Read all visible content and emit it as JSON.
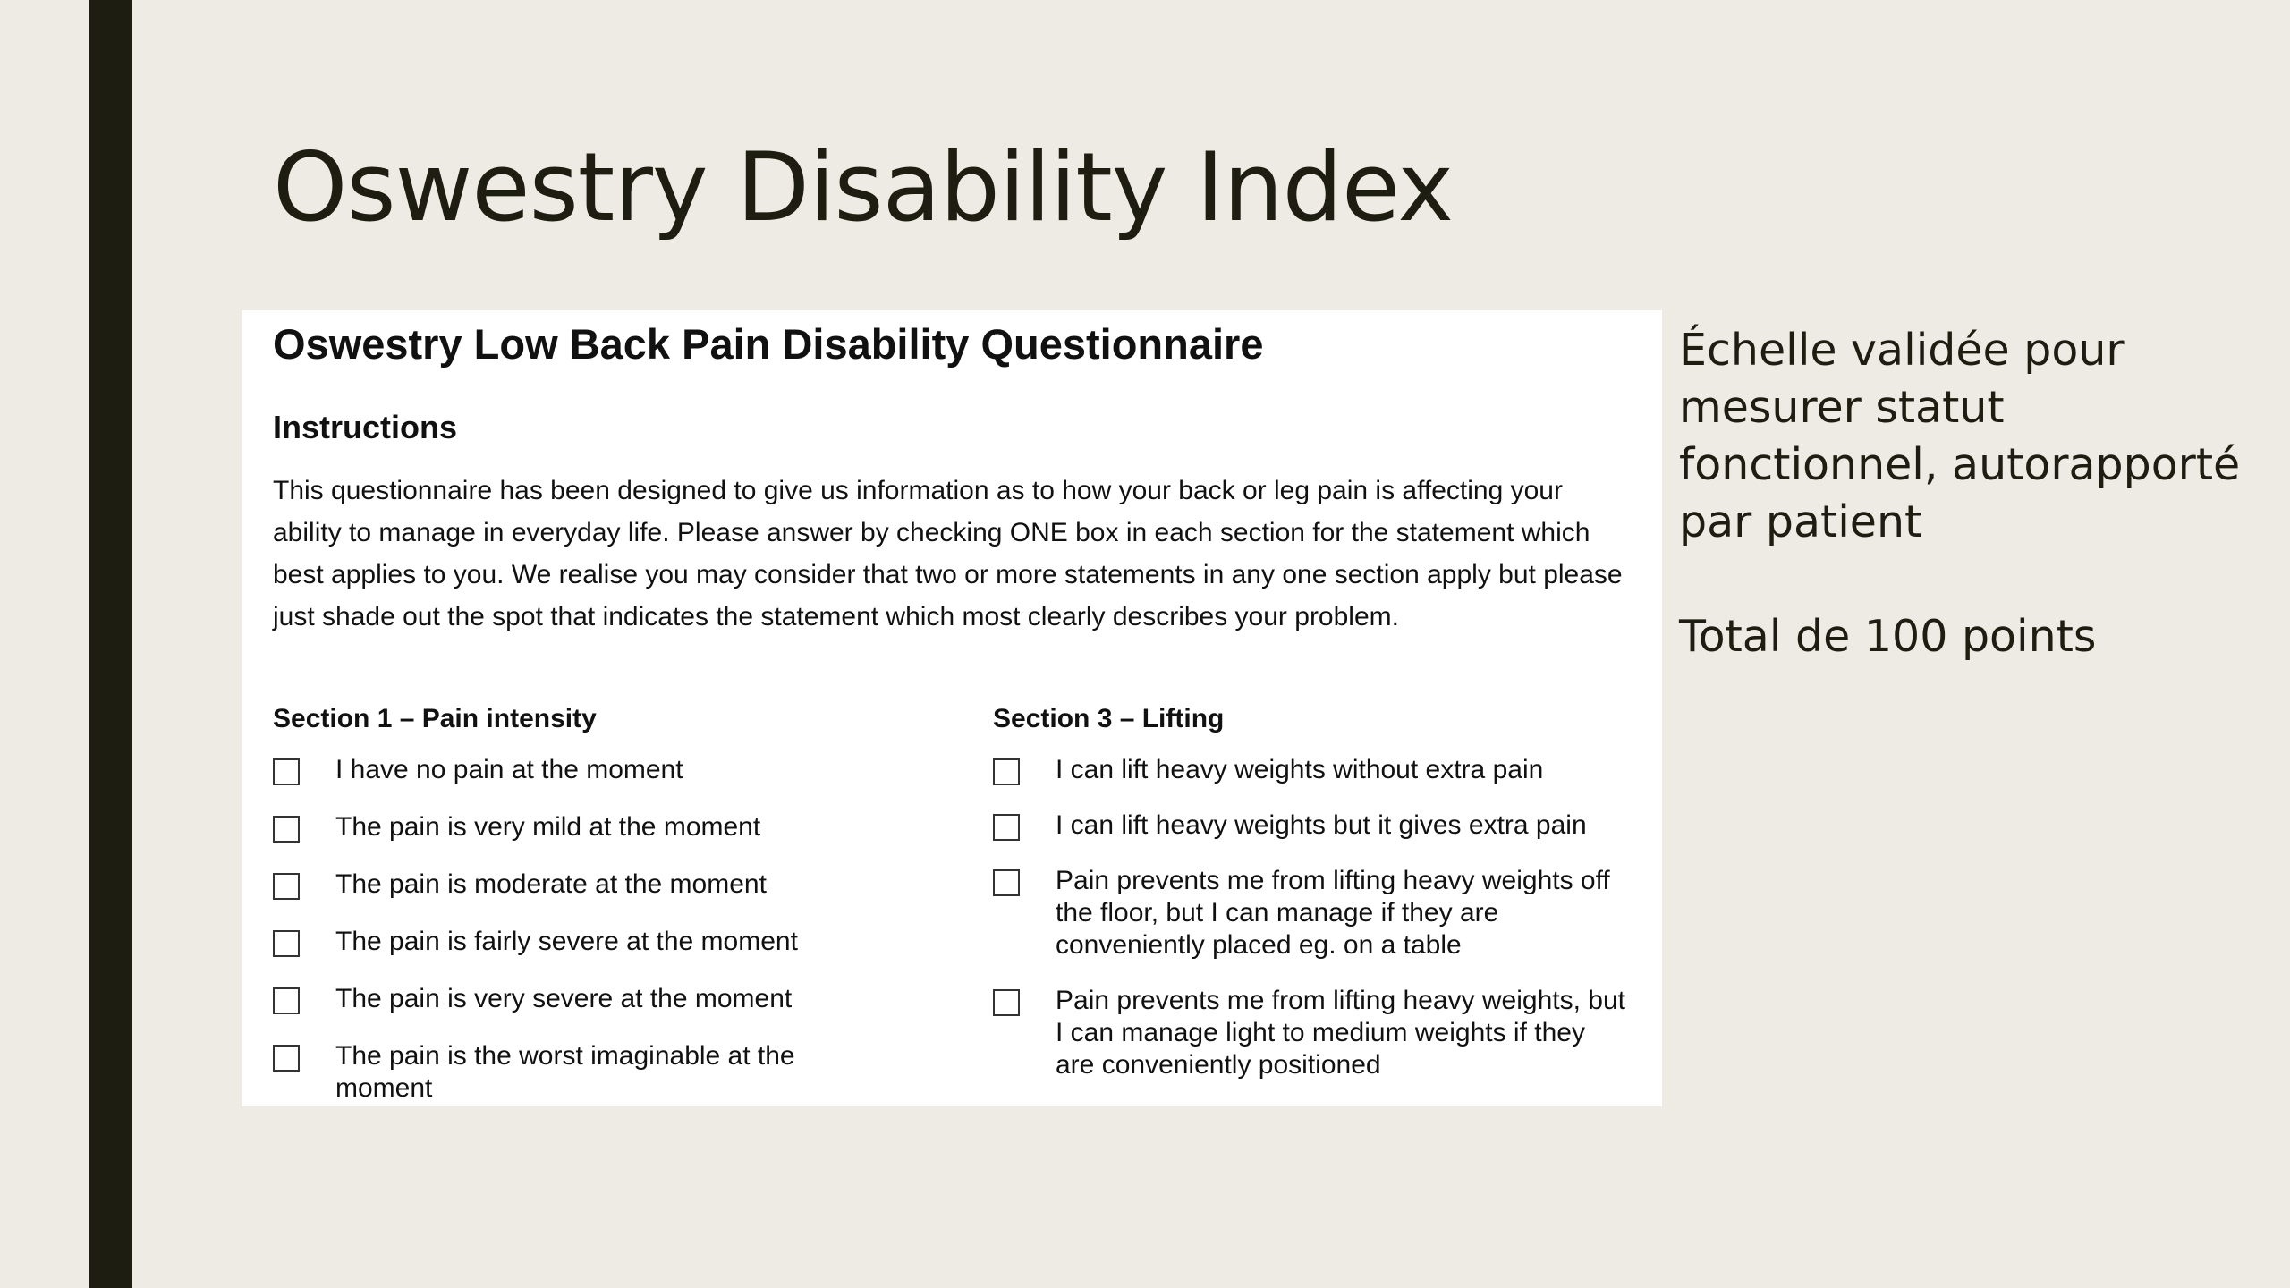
{
  "slide": {
    "title": "Oswestry Disability Index",
    "accent_bar_color": "#1d1d12",
    "background_color": "#edebe3"
  },
  "document": {
    "heading": "Oswestry Low Back Pain Disability Questionnaire",
    "instructions_title": "Instructions",
    "instructions_text": "This questionnaire has been designed to give us information as to how your back or leg pain is affecting your ability to manage in everyday life. Please answer by checking ONE box in each section for the statement which best applies to you. We realise you may consider that two or more statements in any one section apply but please just shade out the spot that indicates the statement which most clearly describes your problem.",
    "section1": {
      "title": "Section 1 – Pain intensity",
      "options": [
        "I have no pain at the moment",
        "The pain is very mild at the moment",
        "The pain is moderate at the moment",
        "The pain is fairly severe at the moment",
        "The pain is very severe at the moment",
        "The pain is the worst imaginable at the moment"
      ]
    },
    "section3": {
      "title": "Section 3 – Lifting",
      "options": [
        "I can lift heavy weights without extra pain",
        "I can lift heavy weights but it gives extra pain",
        "Pain prevents me from lifting heavy weights off the floor, but I can manage if they are conveniently placed eg. on a table",
        "Pain prevents me from lifting heavy weights, but I can manage light to medium weights if they are conveniently positioned"
      ]
    }
  },
  "side": {
    "description": "Échelle validée pour mesurer statut fonctionnel, autorapporté par patient",
    "total": "Total de 100 points"
  }
}
